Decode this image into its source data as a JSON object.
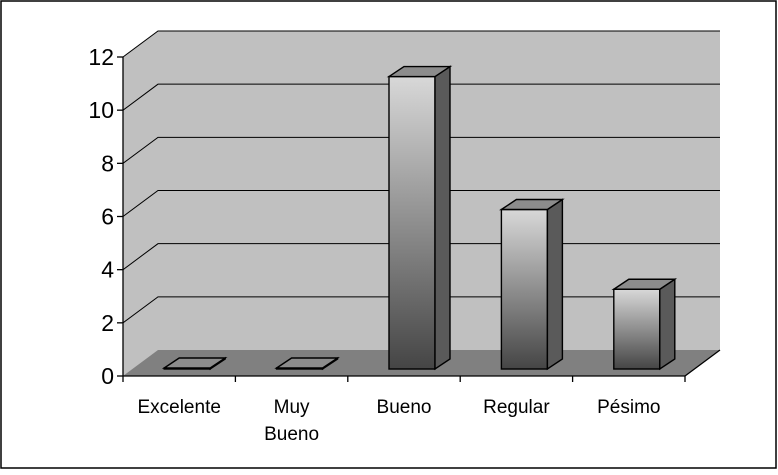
{
  "chart_data": {
    "type": "bar",
    "title": "",
    "xlabel": "",
    "ylabel": "",
    "categories": [
      "Excelente",
      "Muy Bueno",
      "Bueno",
      "Regular",
      "Pésimo"
    ],
    "category_lines": [
      [
        "Excelente"
      ],
      [
        "Muy",
        "Bueno"
      ],
      [
        "Bueno"
      ],
      [
        "Regular"
      ],
      [
        "Pésimo"
      ]
    ],
    "values": [
      0,
      0,
      11,
      6,
      3
    ],
    "ylim": [
      0,
      12
    ],
    "yticks": [
      0,
      2,
      4,
      6,
      8,
      10,
      12
    ],
    "grid": true,
    "legend": "none",
    "style": "3d-column",
    "colors": {
      "back_wall": "#c0c0c0",
      "floor": "#808080",
      "bar_light": "#d8d8d8",
      "bar_dark": "#454545",
      "bar_top": "#8c8c8c",
      "bar_side": "#5a5a5a"
    }
  }
}
